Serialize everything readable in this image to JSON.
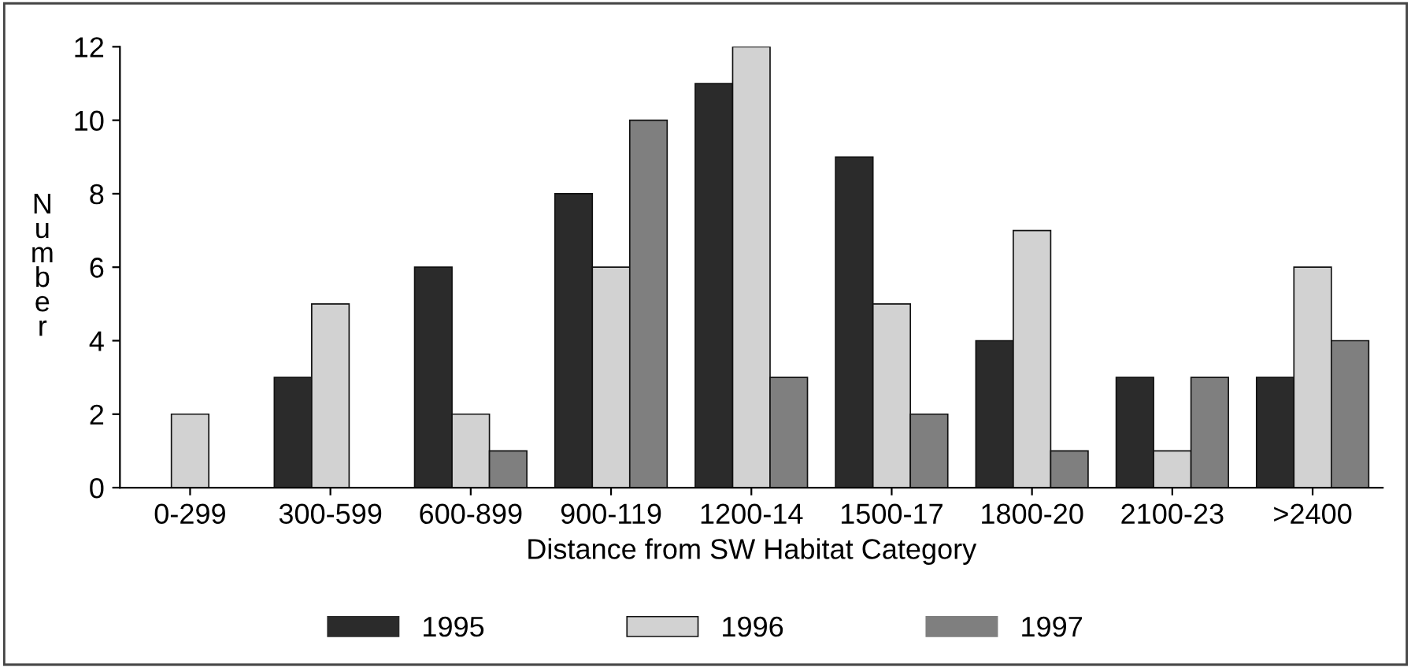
{
  "chart_data": {
    "type": "bar",
    "xlabel": "Distance from SW Habitat Category",
    "ylabel": "Number",
    "categories": [
      "0-299",
      "300-599",
      "600-899",
      "900-119",
      "1200-14",
      "1500-17",
      "1800-20",
      "2100-23",
      ">2400"
    ],
    "series": [
      {
        "name": "1995",
        "color": "#2b2b2b",
        "values": [
          0,
          3,
          6,
          8,
          11,
          9,
          4,
          3,
          3
        ]
      },
      {
        "name": "1996",
        "color": "#d2d2d2",
        "values": [
          2,
          5,
          2,
          6,
          12,
          5,
          7,
          1,
          6
        ]
      },
      {
        "name": "1997",
        "color": "#7f7f7f",
        "values": [
          0,
          0,
          1,
          10,
          3,
          2,
          1,
          3,
          4
        ]
      }
    ],
    "ylim": [
      0,
      12
    ],
    "yticks": [
      0,
      2,
      4,
      6,
      8,
      10,
      12
    ],
    "grid": false,
    "legend": "bottom"
  }
}
